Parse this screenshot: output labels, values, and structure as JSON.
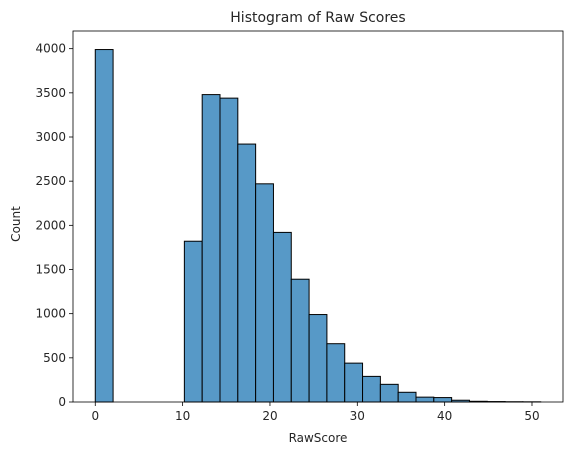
{
  "chart_data": {
    "type": "bar",
    "title": "Histogram of Raw Scores",
    "xlabel": "RawScore",
    "ylabel": "Count",
    "xlim": [
      -2.55,
      53.55
    ],
    "ylim": [
      0,
      4200
    ],
    "xticks": [
      0,
      10,
      20,
      30,
      40,
      50
    ],
    "yticks": [
      0,
      500,
      1000,
      1500,
      2000,
      2500,
      3000,
      3500,
      4000
    ],
    "bin_width": 2.04,
    "bins": [
      {
        "x0": 0.0,
        "x1": 2.04,
        "count": 3990
      },
      {
        "x0": 2.04,
        "x1": 4.08,
        "count": 0
      },
      {
        "x0": 4.08,
        "x1": 6.12,
        "count": 0
      },
      {
        "x0": 6.12,
        "x1": 8.16,
        "count": 0
      },
      {
        "x0": 8.16,
        "x1": 10.2,
        "count": 0
      },
      {
        "x0": 10.2,
        "x1": 12.24,
        "count": 1820
      },
      {
        "x0": 12.24,
        "x1": 14.28,
        "count": 3480
      },
      {
        "x0": 14.28,
        "x1": 16.32,
        "count": 3440
      },
      {
        "x0": 16.32,
        "x1": 18.36,
        "count": 2920
      },
      {
        "x0": 18.36,
        "x1": 20.4,
        "count": 2470
      },
      {
        "x0": 20.4,
        "x1": 22.44,
        "count": 1920
      },
      {
        "x0": 22.44,
        "x1": 24.48,
        "count": 1390
      },
      {
        "x0": 24.48,
        "x1": 26.52,
        "count": 990
      },
      {
        "x0": 26.52,
        "x1": 28.56,
        "count": 660
      },
      {
        "x0": 28.56,
        "x1": 30.6,
        "count": 440
      },
      {
        "x0": 30.6,
        "x1": 32.64,
        "count": 290
      },
      {
        "x0": 32.64,
        "x1": 34.68,
        "count": 200
      },
      {
        "x0": 34.68,
        "x1": 36.72,
        "count": 110
      },
      {
        "x0": 36.72,
        "x1": 38.76,
        "count": 55
      },
      {
        "x0": 38.76,
        "x1": 40.8,
        "count": 50
      },
      {
        "x0": 40.8,
        "x1": 42.84,
        "count": 20
      },
      {
        "x0": 42.84,
        "x1": 44.88,
        "count": 8
      },
      {
        "x0": 44.88,
        "x1": 46.92,
        "count": 5
      },
      {
        "x0": 46.92,
        "x1": 48.96,
        "count": 3
      },
      {
        "x0": 48.96,
        "x1": 51.0,
        "count": 2
      }
    ],
    "bar_color": "#5799c7",
    "edge_color": "#000000",
    "grid": false,
    "legend": "none"
  }
}
